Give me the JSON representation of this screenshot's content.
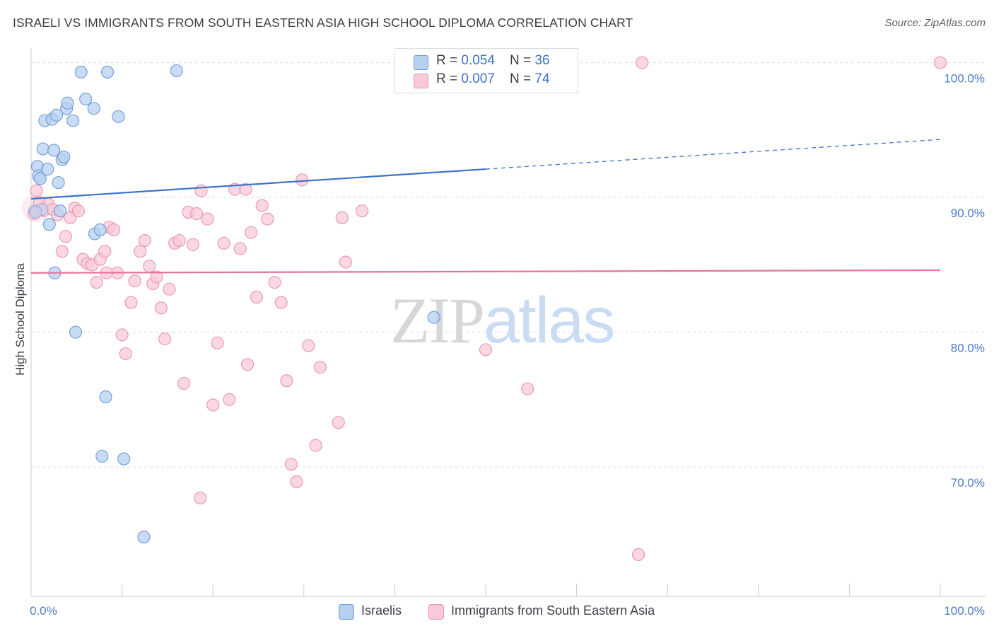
{
  "header": {
    "title": "ISRAELI VS IMMIGRANTS FROM SOUTH EASTERN ASIA HIGH SCHOOL DIPLOMA CORRELATION CHART",
    "source": "Source: ZipAtlas.com"
  },
  "legend": {
    "israelis": {
      "r_label": "R = ",
      "r_value": "0.054",
      "n_label": "N = ",
      "n_value": "36"
    },
    "sea": {
      "r_label": "R = ",
      "r_value": "0.007",
      "n_label": "N = ",
      "n_value": "74"
    }
  },
  "bottom_legend": {
    "israelis": "Israelis",
    "sea": "Immigrants from South Eastern Asia"
  },
  "watermark": {
    "zip": "ZIP",
    "atlas": "atlas"
  },
  "colors": {
    "israelis_fill": "#b7d0f0",
    "israelis_stroke": "#6f9bd8",
    "israelis_line": "#3b74c9",
    "sea_fill": "#f9c9d7",
    "sea_stroke": "#ec94b0",
    "sea_line": "#e8739a",
    "grid": "#d9dce0",
    "tick_text": "#4a7bc8"
  },
  "chart_data": {
    "type": "scatter",
    "title": "ISRAELI VS IMMIGRANTS FROM SOUTH EASTERN ASIA HIGH SCHOOL DIPLOMA CORRELATION CHART",
    "xlabel": "",
    "ylabel": "High School Diploma",
    "xlim": [
      0,
      100
    ],
    "ylim": [
      60.4,
      101.5
    ],
    "x_ticks": [
      "0.0%",
      "100.0%"
    ],
    "y_ticks": [
      {
        "value": 100,
        "label": "100.0%"
      },
      {
        "value": 90,
        "label": "90.0%"
      },
      {
        "value": 80,
        "label": "80.0%"
      },
      {
        "value": 70,
        "label": "70.0%"
      }
    ],
    "grid": true,
    "series": [
      {
        "name": "Israelis",
        "points": [
          [
            0.4,
            89.0
          ],
          [
            0.7,
            92.3
          ],
          [
            0.8,
            91.6
          ],
          [
            1.0,
            91.4
          ],
          [
            1.3,
            93.6
          ],
          [
            1.5,
            95.7
          ],
          [
            1.8,
            92.1
          ],
          [
            2.0,
            88.0
          ],
          [
            2.3,
            95.8
          ],
          [
            2.5,
            93.5
          ],
          [
            2.8,
            96.1
          ],
          [
            3.2,
            89.0
          ],
          [
            3.4,
            92.8
          ],
          [
            3.6,
            93.0
          ],
          [
            3.9,
            96.6
          ],
          [
            4.0,
            97.0
          ],
          [
            4.6,
            95.7
          ],
          [
            4.9,
            80.0
          ],
          [
            5.5,
            99.3
          ],
          [
            6.0,
            97.3
          ],
          [
            6.9,
            96.6
          ],
          [
            7.0,
            87.3
          ],
          [
            7.6,
            87.6
          ],
          [
            7.8,
            70.8
          ],
          [
            8.2,
            75.2
          ],
          [
            8.4,
            99.3
          ],
          [
            9.6,
            96.0
          ],
          [
            10.2,
            70.6
          ],
          [
            12.4,
            64.8
          ],
          [
            16.0,
            99.4
          ],
          [
            2.6,
            84.4
          ],
          [
            3.0,
            91.1
          ],
          [
            1.2,
            89.1
          ],
          [
            0.5,
            88.9
          ],
          [
            44.3,
            81.1
          ],
          [
            45.0,
            100.0
          ]
        ],
        "trend": {
          "x": [
            0,
            50,
            100
          ],
          "y": [
            89.9,
            92.1,
            94.3
          ],
          "solid_until_x": 50
        }
      },
      {
        "name": "Immigrants from South Eastern Asia",
        "points": [
          [
            0.3,
            88.8
          ],
          [
            0.6,
            90.5
          ],
          [
            0.9,
            89.6
          ],
          [
            1.4,
            89.0
          ],
          [
            1.9,
            89.5
          ],
          [
            2.4,
            89.1
          ],
          [
            2.9,
            88.7
          ],
          [
            3.4,
            86.0
          ],
          [
            3.8,
            87.1
          ],
          [
            4.3,
            88.5
          ],
          [
            4.8,
            89.2
          ],
          [
            5.2,
            89.0
          ],
          [
            5.7,
            85.4
          ],
          [
            6.2,
            85.1
          ],
          [
            6.7,
            85.0
          ],
          [
            7.2,
            83.7
          ],
          [
            7.6,
            85.4
          ],
          [
            8.1,
            86.0
          ],
          [
            8.6,
            87.8
          ],
          [
            9.1,
            87.6
          ],
          [
            9.5,
            84.4
          ],
          [
            10.0,
            79.8
          ],
          [
            10.4,
            78.4
          ],
          [
            11.0,
            82.2
          ],
          [
            11.4,
            83.8
          ],
          [
            12.0,
            86.0
          ],
          [
            12.5,
            86.8
          ],
          [
            13.0,
            84.9
          ],
          [
            13.4,
            83.6
          ],
          [
            13.8,
            84.1
          ],
          [
            14.3,
            81.8
          ],
          [
            14.7,
            79.5
          ],
          [
            15.2,
            83.2
          ],
          [
            15.8,
            86.6
          ],
          [
            16.3,
            86.8
          ],
          [
            16.8,
            76.2
          ],
          [
            17.3,
            88.9
          ],
          [
            17.8,
            86.5
          ],
          [
            18.2,
            88.8
          ],
          [
            18.7,
            90.5
          ],
          [
            19.4,
            88.4
          ],
          [
            20.0,
            74.6
          ],
          [
            20.5,
            79.2
          ],
          [
            21.2,
            86.6
          ],
          [
            21.8,
            75.0
          ],
          [
            22.4,
            90.6
          ],
          [
            23.0,
            86.2
          ],
          [
            23.6,
            90.6
          ],
          [
            24.2,
            87.4
          ],
          [
            24.8,
            82.6
          ],
          [
            25.4,
            89.4
          ],
          [
            26.0,
            88.4
          ],
          [
            26.8,
            83.7
          ],
          [
            27.5,
            82.2
          ],
          [
            28.1,
            76.4
          ],
          [
            28.6,
            70.2
          ],
          [
            29.2,
            68.9
          ],
          [
            29.8,
            91.3
          ],
          [
            30.5,
            79.0
          ],
          [
            31.3,
            71.6
          ],
          [
            31.8,
            77.4
          ],
          [
            33.8,
            73.3
          ],
          [
            34.2,
            88.5
          ],
          [
            34.6,
            85.2
          ],
          [
            36.4,
            89.0
          ],
          [
            23.8,
            77.6
          ],
          [
            50.0,
            78.7
          ],
          [
            54.6,
            75.8
          ],
          [
            58.3,
            100.0
          ],
          [
            66.8,
            63.5
          ],
          [
            67.2,
            100.0
          ],
          [
            100.0,
            100.0
          ],
          [
            18.6,
            67.7
          ],
          [
            8.3,
            84.4
          ]
        ],
        "trend": {
          "x": [
            0,
            100
          ],
          "y": [
            84.4,
            84.6
          ]
        }
      }
    ]
  }
}
